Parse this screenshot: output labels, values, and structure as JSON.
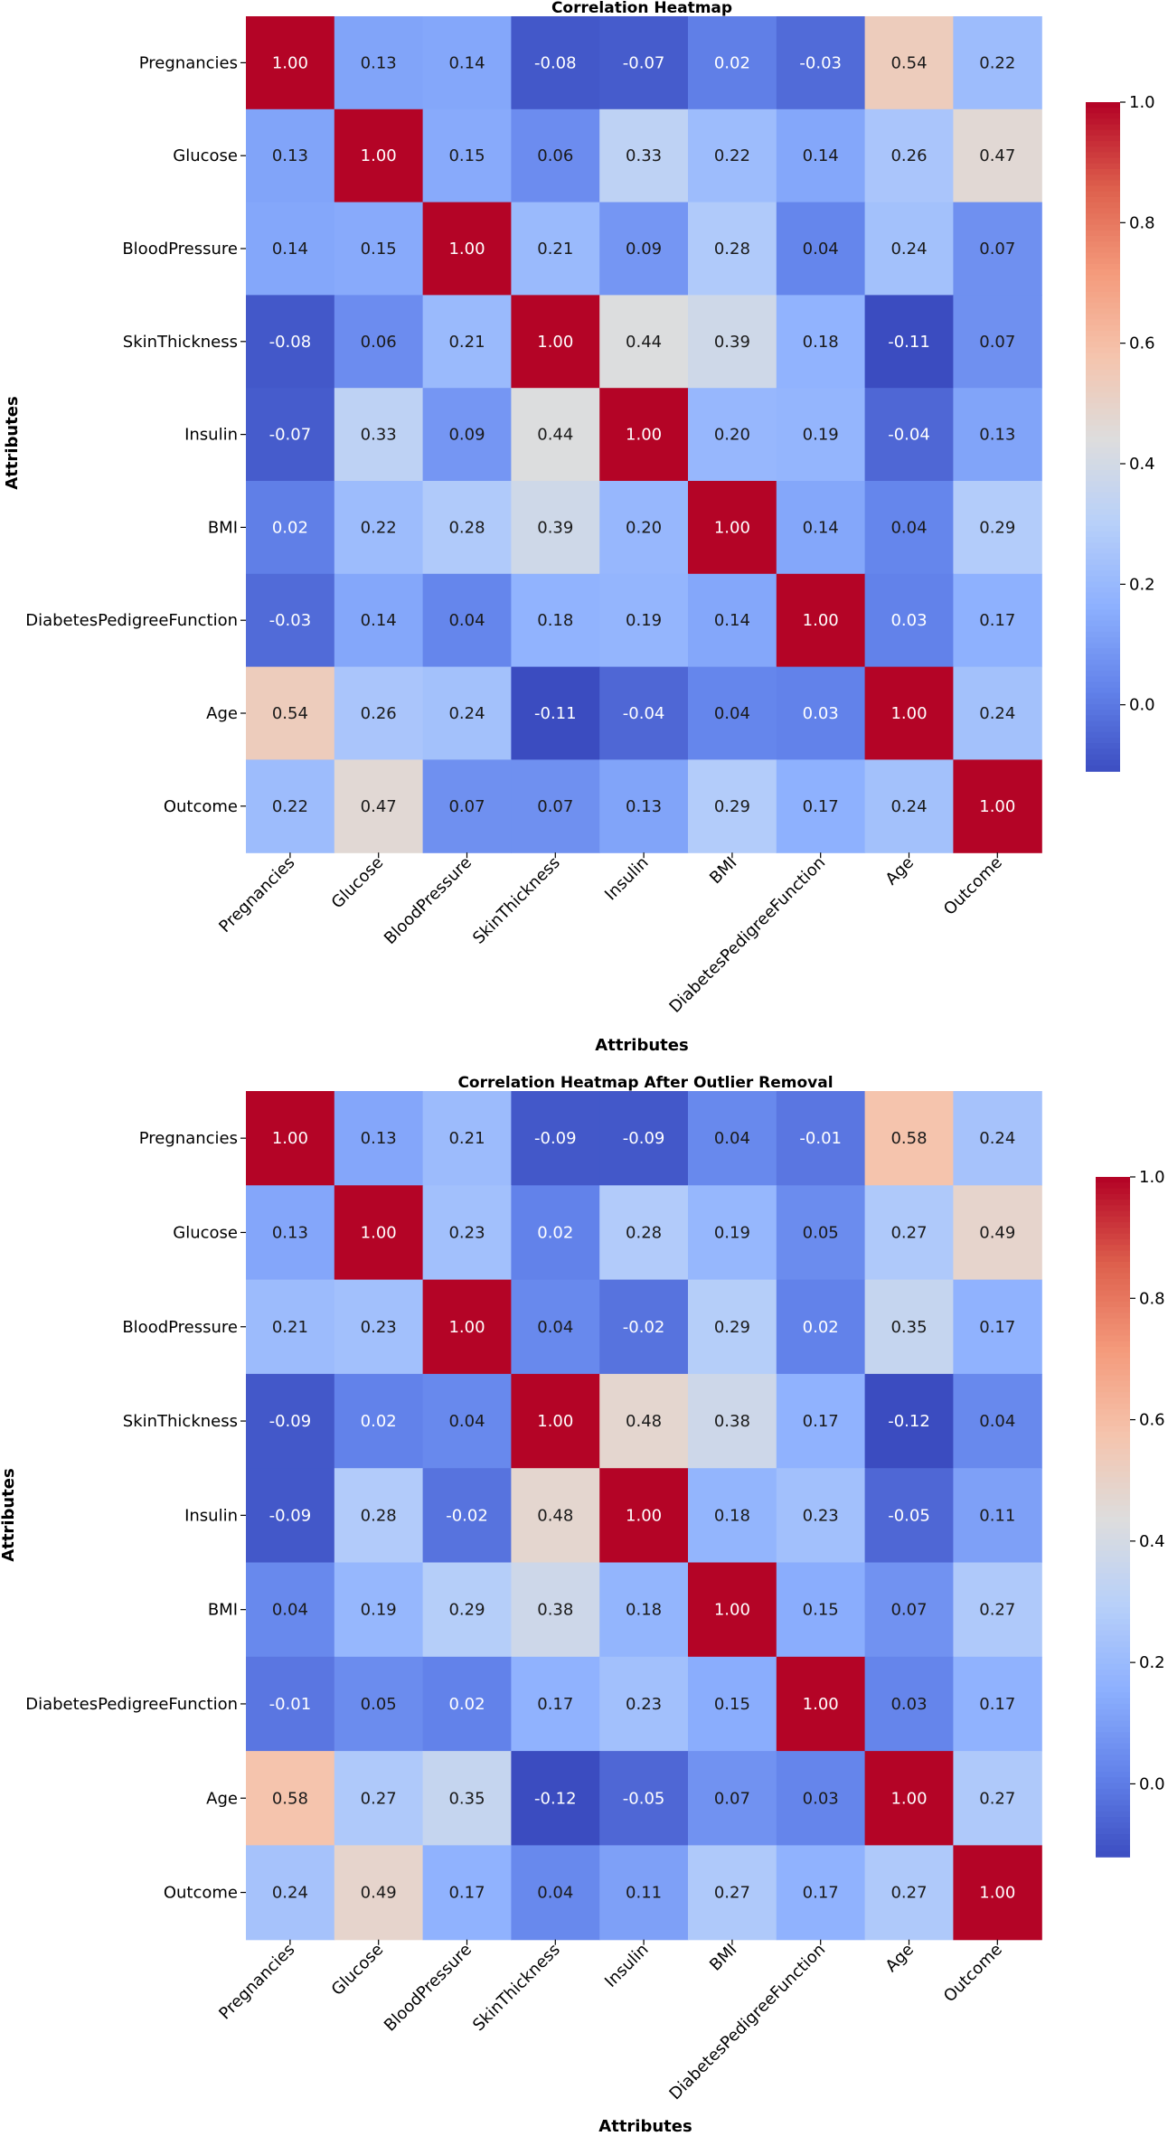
{
  "chart_data": [
    {
      "type": "heatmap",
      "title": "Correlation Heatmap",
      "xlabel": "Attributes",
      "ylabel": "Attributes",
      "categories": [
        "Pregnancies",
        "Glucose",
        "BloodPressure",
        "SkinThickness",
        "Insulin",
        "BMI",
        "DiabetesPedigreeFunction",
        "Age",
        "Outcome"
      ],
      "values": [
        [
          1.0,
          0.13,
          0.14,
          -0.08,
          -0.07,
          0.02,
          -0.03,
          0.54,
          0.22
        ],
        [
          0.13,
          1.0,
          0.15,
          0.06,
          0.33,
          0.22,
          0.14,
          0.26,
          0.47
        ],
        [
          0.14,
          0.15,
          1.0,
          0.21,
          0.09,
          0.28,
          0.04,
          0.24,
          0.07
        ],
        [
          -0.08,
          0.06,
          0.21,
          1.0,
          0.44,
          0.39,
          0.18,
          -0.11,
          0.07
        ],
        [
          -0.07,
          0.33,
          0.09,
          0.44,
          1.0,
          0.2,
          0.19,
          -0.04,
          0.13
        ],
        [
          0.02,
          0.22,
          0.28,
          0.39,
          0.2,
          1.0,
          0.14,
          0.04,
          0.29
        ],
        [
          -0.03,
          0.14,
          0.04,
          0.18,
          0.19,
          0.14,
          1.0,
          0.03,
          0.17
        ],
        [
          0.54,
          0.26,
          0.24,
          -0.11,
          -0.04,
          0.04,
          0.03,
          1.0,
          0.24
        ],
        [
          0.22,
          0.47,
          0.07,
          0.07,
          0.13,
          0.29,
          0.17,
          0.24,
          1.0
        ]
      ],
      "colormap": "coolwarm",
      "vmin": -0.11,
      "vmax": 1.0,
      "colorbar_ticks": [
        "0.0",
        "0.2",
        "0.4",
        "0.6",
        "0.8",
        "1.0"
      ],
      "colorbar_tick_values": [
        0.0,
        0.2,
        0.4,
        0.6,
        0.8,
        1.0
      ]
    },
    {
      "type": "heatmap",
      "title": "Correlation Heatmap After Outlier Removal",
      "xlabel": "Attributes",
      "ylabel": "Attributes",
      "categories": [
        "Pregnancies",
        "Glucose",
        "BloodPressure",
        "SkinThickness",
        "Insulin",
        "BMI",
        "DiabetesPedigreeFunction",
        "Age",
        "Outcome"
      ],
      "values": [
        [
          1.0,
          0.13,
          0.21,
          -0.09,
          -0.09,
          0.04,
          -0.01,
          0.58,
          0.24
        ],
        [
          0.13,
          1.0,
          0.23,
          0.02,
          0.28,
          0.19,
          0.05,
          0.27,
          0.49
        ],
        [
          0.21,
          0.23,
          1.0,
          0.04,
          -0.02,
          0.29,
          0.02,
          0.35,
          0.17
        ],
        [
          -0.09,
          0.02,
          0.04,
          1.0,
          0.48,
          0.38,
          0.17,
          -0.12,
          0.04
        ],
        [
          -0.09,
          0.28,
          -0.02,
          0.48,
          1.0,
          0.18,
          0.23,
          -0.05,
          0.11
        ],
        [
          0.04,
          0.19,
          0.29,
          0.38,
          0.18,
          1.0,
          0.15,
          0.07,
          0.27
        ],
        [
          -0.01,
          0.05,
          0.02,
          0.17,
          0.23,
          0.15,
          1.0,
          0.03,
          0.17
        ],
        [
          0.58,
          0.27,
          0.35,
          -0.12,
          -0.05,
          0.07,
          0.03,
          1.0,
          0.27
        ],
        [
          0.24,
          0.49,
          0.17,
          0.04,
          0.11,
          0.27,
          0.17,
          0.27,
          1.0
        ]
      ],
      "colormap": "coolwarm",
      "vmin": -0.12,
      "vmax": 1.0,
      "colorbar_ticks": [
        "0.0",
        "0.2",
        "0.4",
        "0.6",
        "0.8",
        "1.0"
      ],
      "colorbar_tick_values": [
        0.0,
        0.2,
        0.4,
        0.6,
        0.8,
        1.0
      ]
    }
  ]
}
